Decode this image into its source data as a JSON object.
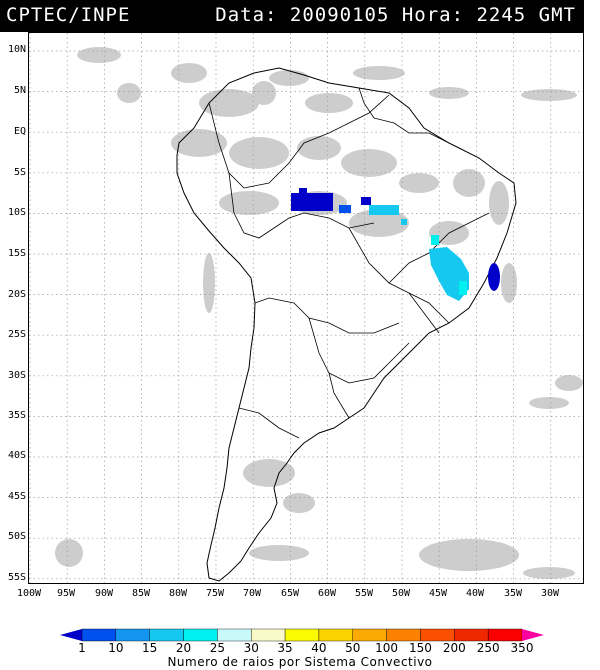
{
  "header": {
    "org": "CPTEC/INPE",
    "datetime": "Data: 20090105 Hora: 2245 GMT"
  },
  "map": {
    "lat_labels": [
      "10N",
      "5N",
      "EQ",
      "5S",
      "10S",
      "15S",
      "20S",
      "25S",
      "30S",
      "35S",
      "40S",
      "45S",
      "50S",
      "55S"
    ],
    "lon_labels": [
      "100W",
      "95W",
      "90W",
      "85W",
      "80W",
      "75W",
      "70W",
      "65W",
      "60W",
      "55W",
      "50W",
      "45W",
      "40W",
      "35W",
      "30W"
    ],
    "grid": "dotted",
    "background_cloud_color": "#c8c8c8",
    "coastline_color": "#000000"
  },
  "colorbar": {
    "labels": [
      "1",
      "10",
      "15",
      "20",
      "25",
      "30",
      "35",
      "40",
      "50",
      "100",
      "150",
      "200",
      "250",
      "350"
    ],
    "colors": [
      "#0000c8",
      "#0050f0",
      "#1496f0",
      "#14c8f0",
      "#00f0f0",
      "#c8fafa",
      "#fafac8",
      "#fafa00",
      "#fad200",
      "#faaa00",
      "#fa8200",
      "#fa5000",
      "#f02800",
      "#fa0000",
      "#fa00a0"
    ],
    "title": "Numero de raios por Sistema Convectivo"
  }
}
